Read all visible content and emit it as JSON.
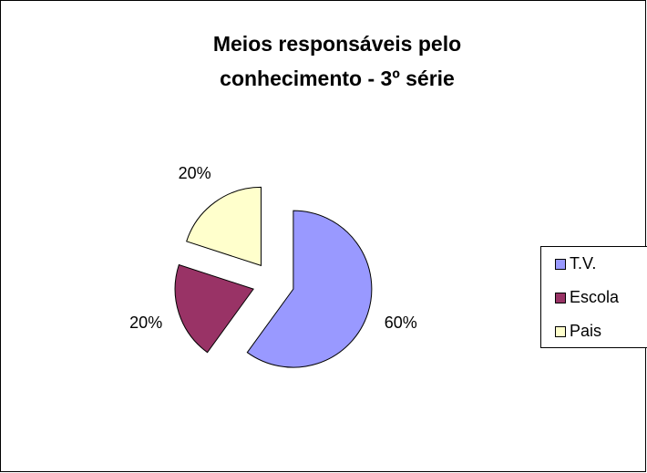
{
  "chart_data": {
    "type": "pie",
    "title": [
      "Meios responsáveis pelo",
      "conhecimento - 3º série"
    ],
    "categories": [
      "T.V.",
      "Escola",
      "Pais"
    ],
    "values": [
      60,
      20,
      20
    ],
    "value_labels": [
      "60%",
      "20%",
      "20%"
    ],
    "colors": [
      "#9999ff",
      "#993366",
      "#ffffcc"
    ],
    "exploded": true,
    "legend": "right"
  }
}
